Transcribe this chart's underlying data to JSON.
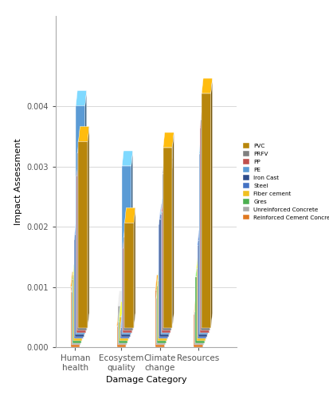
{
  "cat_labels": [
    "Human\nhealth",
    "Ecosystem\nquality",
    "Climate\nchange",
    "Resources"
  ],
  "cat_keys": [
    "Human health",
    "Ecosystem quality",
    "Climate change",
    "Resources"
  ],
  "materials": [
    "Reinforced Cement Concrete",
    "Unreinforced Concrete",
    "Gres",
    "Fiber cement",
    "Steel",
    "Iron Cast",
    "PE",
    "PP",
    "PRFV",
    "PVC"
  ],
  "colors": [
    "#E07820",
    "#AAAAAA",
    "#4CAF50",
    "#F0C020",
    "#4472C4",
    "#2E4D8B",
    "#5B9BD5",
    "#C0504D",
    "#7F7F7F",
    "#B8860B"
  ],
  "data": {
    "Human health": [
      0.001,
      0.00088,
      0.00105,
      0.0011,
      0.00165,
      0.0017,
      0.0038,
      0.0026,
      0.00295,
      0.0031
    ],
    "Ecosystem quality": [
      0.00035,
      0.00065,
      0.00035,
      0.0004,
      0.00015,
      0.00015,
      0.0028,
      0.0014,
      0.00155,
      0.00175
    ],
    "Climate change": [
      0.00095,
      0.00078,
      0.00095,
      0.001,
      0.0019,
      0.00195,
      0.002,
      0.002,
      0.0026,
      0.003
    ],
    "Resources": [
      0.00055,
      0.00055,
      0.0011,
      0.0012,
      0.00155,
      0.0016,
      0.003,
      0.0034,
      0.0035,
      0.0039
    ]
  },
  "ylim": [
    0,
    0.0055
  ],
  "ylabel": "Impact Assessment",
  "xlabel": "Damage Category",
  "background_color": "#FFFFFF",
  "grid_color": "#D8D8D8"
}
